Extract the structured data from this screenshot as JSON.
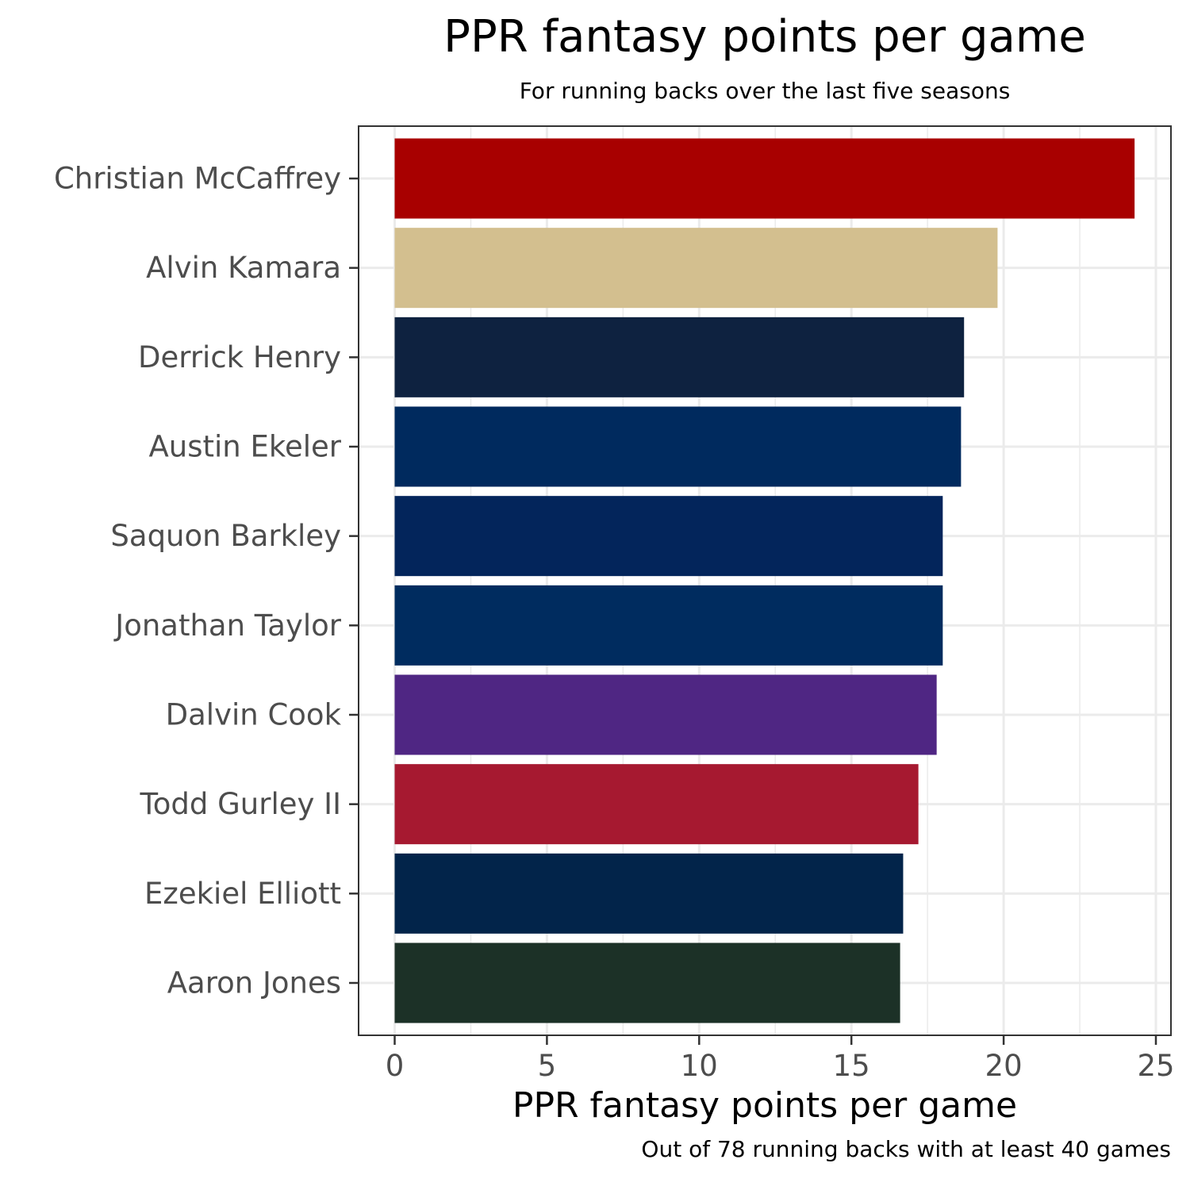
{
  "chart_data": {
    "type": "bar",
    "orientation": "horizontal",
    "title": "PPR fantasy points per game",
    "subtitle": "For running backs over the last five seasons",
    "xlabel": "PPR fantasy points per game",
    "ylabel": "",
    "caption": "Out of 78 running backs with at least 40 games",
    "xlim": [
      0,
      25
    ],
    "x_ticks": [
      0,
      5,
      10,
      15,
      20,
      25
    ],
    "grid": true,
    "categories": [
      "Christian McCaffrey",
      "Alvin Kamara",
      "Derrick Henry",
      "Austin Ekeler",
      "Saquon Barkley",
      "Jonathan Taylor",
      "Dalvin Cook",
      "Todd Gurley II",
      "Ezekiel Elliott",
      "Aaron Jones"
    ],
    "values": [
      24.3,
      19.8,
      18.7,
      18.6,
      18.0,
      18.0,
      17.8,
      17.2,
      16.7,
      16.6
    ],
    "colors": [
      "#A80000",
      "#D3BF8F",
      "#0E2240",
      "#002A5E",
      "#03255B",
      "#002C5F",
      "#4F2683",
      "#A61930",
      "#02244A",
      "#1C3127"
    ]
  }
}
